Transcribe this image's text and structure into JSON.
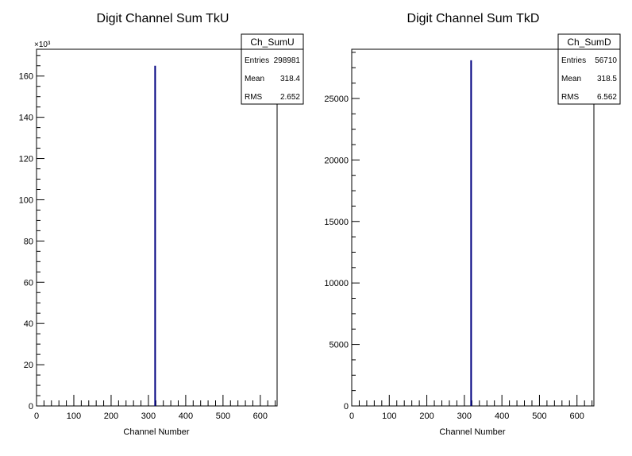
{
  "chart_data": [
    {
      "type": "bar",
      "title": "Digit Channel Sum TkU",
      "xlabel": "Channel Number",
      "ylabel": "",
      "exponent_label": "×10³",
      "xlim": [
        0,
        645
      ],
      "ylim": [
        0,
        173
      ],
      "x_major_ticks": [
        0,
        100,
        200,
        300,
        400,
        500,
        600
      ],
      "y_major_ticks": [
        0,
        20,
        40,
        60,
        80,
        100,
        120,
        140,
        160
      ],
      "bins": [
        {
          "x": 318,
          "value": 165
        }
      ],
      "stats": {
        "name": "Ch_SumU",
        "rows": [
          {
            "label": "Entries",
            "value": "298981"
          },
          {
            "label": "Mean",
            "value": "318.4"
          },
          {
            "label": "RMS",
            "value": "2.652"
          }
        ]
      }
    },
    {
      "type": "bar",
      "title": "Digit Channel Sum TkD",
      "xlabel": "Channel Number",
      "ylabel": "",
      "exponent_label": "",
      "xlim": [
        0,
        645
      ],
      "ylim": [
        0,
        29000
      ],
      "x_major_ticks": [
        0,
        100,
        200,
        300,
        400,
        500,
        600
      ],
      "y_major_ticks": [
        0,
        5000,
        10000,
        15000,
        20000,
        25000
      ],
      "bins": [
        {
          "x": 318,
          "value": 28100
        }
      ],
      "stats": {
        "name": "Ch_SumD",
        "rows": [
          {
            "label": "Entries",
            "value": "56710"
          },
          {
            "label": "Mean",
            "value": "318.5"
          },
          {
            "label": "RMS",
            "value": "6.562"
          }
        ]
      }
    }
  ]
}
